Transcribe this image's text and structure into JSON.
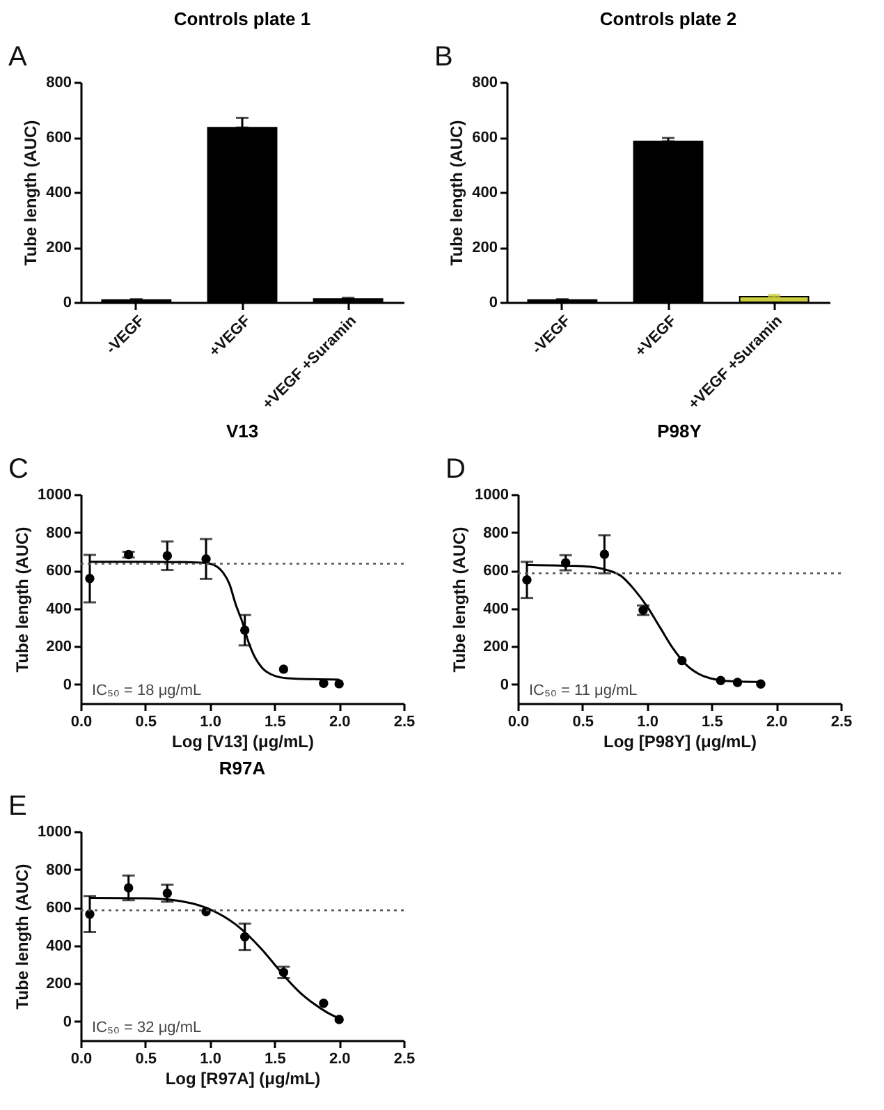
{
  "chart_data": [
    {
      "type": "bar",
      "title": "Controls plate 1",
      "ylabel": "Tube length (AUC)",
      "annotations": [
        "A"
      ],
      "categories": [
        "-VEGF",
        "+VEGF",
        "+VEGF +Suramin"
      ],
      "values": [
        8,
        635,
        12
      ],
      "errors": [
        [
          8,
          11
        ],
        [
          635,
          670
        ],
        [
          12,
          16
        ]
      ],
      "color": "#000000",
      "ylim": [
        0,
        800
      ],
      "yticks": [
        0,
        200,
        400,
        600,
        800
      ],
      "grid": false
    },
    {
      "type": "bar",
      "title": "Controls plate 2",
      "ylabel": "Tube length (AUC)",
      "annotations": [
        "B"
      ],
      "categories": [
        "-VEGF",
        "+VEGF",
        "+VEGF +Suramin"
      ],
      "values": [
        8,
        585,
        20
      ],
      "errors": [
        [
          8,
          11
        ],
        [
          585,
          597
        ],
        [
          20,
          27
        ]
      ],
      "colors": [
        "#000000",
        "#000000",
        "#c9cc3f"
      ],
      "ylim": [
        0,
        800
      ],
      "yticks": [
        0,
        200,
        400,
        600,
        800
      ],
      "grid": false
    },
    {
      "type": "scatter",
      "title": "V13",
      "xlabel": "Log [V13] (μg/mL)",
      "ylabel": "Tube length (AUC)",
      "annotations": [
        "C",
        "IC₅₀ = 18 μg/mL"
      ],
      "marker": "circle",
      "grid": false,
      "xlim": [
        0,
        2.5
      ],
      "xticks": [
        {
          "value": 0,
          "label": "0.0"
        },
        0.5,
        {
          "value": 1,
          "label": "1.0"
        },
        1.5,
        {
          "value": 2,
          "label": "2.0"
        },
        2.5
      ],
      "ylim": [
        -100,
        1000
      ],
      "yticks": [
        0,
        200,
        400,
        600,
        800,
        1000
      ],
      "series": [
        {
          "color": "#000000",
          "x": [
            0.07,
            0.37,
            0.67,
            0.97,
            1.27,
            1.57,
            1.88,
            2.0
          ],
          "values": [
            557,
            683,
            677,
            660,
            285,
            80,
            5,
            3
          ],
          "errors": [
            125,
            15,
            75,
            105,
            80,
            null,
            null,
            null
          ]
        },
        {
          "type": "line",
          "marker": "none",
          "color": "#000000",
          "x": [
            0.07,
            0.5,
            0.9,
            1.0,
            1.1,
            1.15,
            1.2,
            1.25,
            1.3,
            1.35,
            1.4,
            1.5,
            1.6,
            1.8,
            2.0
          ],
          "values": [
            645,
            645,
            642,
            635,
            590,
            530,
            420,
            330,
            220,
            140,
            90,
            45,
            32,
            27,
            25
          ]
        }
      ],
      "ref_lines": [
        {
          "axis": "y",
          "value": 635,
          "line_style": "dotted",
          "color": "#555555"
        }
      ]
    },
    {
      "type": "scatter",
      "title": "P98Y",
      "xlabel": "Log [P98Y] (μg/mL)",
      "ylabel": "Tube length (AUC)",
      "annotations": [
        "D",
        "IC₅₀ = 11 μg/mL"
      ],
      "marker": "circle",
      "grid": false,
      "xlim": [
        0,
        2.5
      ],
      "xticks": [
        {
          "value": 0,
          "label": "0.0"
        },
        0.5,
        {
          "value": 1,
          "label": "1.0"
        },
        1.5,
        {
          "value": 2,
          "label": "2.0"
        },
        2.5
      ],
      "ylim": [
        -100,
        1000
      ],
      "yticks": [
        0,
        200,
        400,
        600,
        800,
        1000
      ],
      "series": [
        {
          "color": "#000000",
          "x": [
            0.07,
            0.37,
            0.67,
            0.97,
            1.27,
            1.57,
            1.7,
            1.88
          ],
          "values": [
            550,
            640,
            685,
            390,
            125,
            20,
            10,
            2
          ],
          "errors": [
            95,
            40,
            100,
            25,
            null,
            null,
            null,
            null
          ]
        },
        {
          "type": "line",
          "marker": "none",
          "color": "#000000",
          "x": [
            0.07,
            0.5,
            0.7,
            0.8,
            0.9,
            1.0,
            1.1,
            1.2,
            1.3,
            1.4,
            1.5,
            1.6,
            1.88
          ],
          "values": [
            628,
            622,
            600,
            570,
            500,
            410,
            300,
            190,
            105,
            55,
            30,
            18,
            12
          ]
        }
      ],
      "ref_lines": [
        {
          "axis": "y",
          "value": 585,
          "line_style": "dotted",
          "color": "#555555"
        }
      ]
    },
    {
      "type": "scatter",
      "title": "R97A",
      "xlabel": "Log [R97A] (μg/mL)",
      "ylabel": "Tube length (AUC)",
      "annotations": [
        "E",
        "IC₅₀ = 32 μg/mL"
      ],
      "marker": "circle",
      "grid": false,
      "xlim": [
        0,
        2.5
      ],
      "xticks": [
        {
          "value": 0,
          "label": "0.0"
        },
        0.5,
        {
          "value": 1,
          "label": "1.0"
        },
        1.5,
        {
          "value": 2,
          "label": "2.0"
        },
        2.5
      ],
      "ylim": [
        -100,
        1000
      ],
      "yticks": [
        0,
        200,
        400,
        600,
        800,
        1000
      ],
      "series": [
        {
          "color": "#000000",
          "x": [
            0.07,
            0.37,
            0.67,
            0.97,
            1.27,
            1.57,
            1.88,
            2.0
          ],
          "values": [
            565,
            703,
            675,
            578,
            445,
            258,
            95,
            10
          ],
          "errors": [
            95,
            65,
            45,
            null,
            70,
            30,
            null,
            null
          ]
        },
        {
          "type": "line",
          "marker": "none",
          "color": "#000000",
          "x": [
            0.07,
            0.5,
            0.8,
            1.0,
            1.2,
            1.4,
            1.5,
            1.6,
            1.7,
            1.8,
            1.9,
            2.0
          ],
          "values": [
            650,
            648,
            630,
            590,
            510,
            380,
            300,
            220,
            150,
            95,
            50,
            15
          ]
        }
      ],
      "ref_lines": [
        {
          "axis": "y",
          "value": 585,
          "line_style": "dotted",
          "color": "#555555"
        }
      ]
    }
  ]
}
